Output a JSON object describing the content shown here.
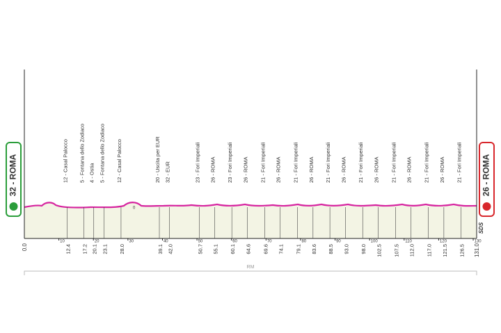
{
  "chart_data": {
    "type": "profile",
    "start": "32 - ROMA",
    "finish": "26 - ROMA",
    "start_km": {
      "value": 0,
      "label": "0.0"
    },
    "finish_km": {
      "value": 131,
      "label": "131.0"
    },
    "xlim": [
      0,
      131
    ],
    "xticks": [
      10,
      20,
      30,
      40,
      50,
      60,
      70,
      80,
      90,
      100,
      110,
      120,
      130
    ],
    "color": "#d6249f",
    "fill": "#f3f4e4",
    "annotation": "0",
    "region": "RM",
    "brand": "SDS",
    "waypoints": [
      {
        "km": 12.4,
        "name": "12 - Casal Palocco"
      },
      {
        "km": 17.2,
        "name": "5 - Fontana dello Zodiaco"
      },
      {
        "km": 20.1,
        "name": "4 - Ostia"
      },
      {
        "km": 23.1,
        "name": "5 - Fontana dello Zodiaco"
      },
      {
        "km": {
          "value": 28,
          "label": "28.0"
        },
        "name": "12 - Casal Palocco"
      },
      {
        "km": 39.1,
        "name": "20 - Uscita per EUR"
      },
      {
        "km": {
          "value": 42,
          "label": "42.0"
        },
        "name": "32 - EUR"
      },
      {
        "km": 50.7,
        "name": "23 - Fori Imperiali"
      },
      {
        "km": 55.1,
        "name": "26 - ROMA"
      },
      {
        "km": 60.1,
        "name": "23 - Fori Imperiali"
      },
      {
        "km": 64.6,
        "name": "26 - ROMA"
      },
      {
        "km": 69.6,
        "name": "21 - Fori Imperiali"
      },
      {
        "km": 74.1,
        "name": "26 - ROMA"
      },
      {
        "km": 79.1,
        "name": "21 - Fori Imperiali"
      },
      {
        "km": 83.6,
        "name": "26 - ROMA"
      },
      {
        "km": 88.5,
        "name": "21 - Fori Imperiali"
      },
      {
        "km": {
          "value": 93,
          "label": "93.0"
        },
        "name": "26 - ROMA"
      },
      {
        "km": {
          "value": 98,
          "label": "98.0"
        },
        "name": "21 - Fori Imperiali"
      },
      {
        "km": 102.5,
        "name": "26 - ROMA"
      },
      {
        "km": 107.5,
        "name": "21 - Fori Imperiali"
      },
      {
        "km": {
          "value": 112,
          "label": "112.0"
        },
        "name": "26 - ROMA"
      },
      {
        "km": {
          "value": 117,
          "label": "117.0"
        },
        "name": "21 - Fori Imperiali"
      },
      {
        "km": 121.5,
        "name": "26 - ROMA"
      },
      {
        "km": 126.5,
        "name": "21 - Fori Imperiali"
      }
    ]
  }
}
